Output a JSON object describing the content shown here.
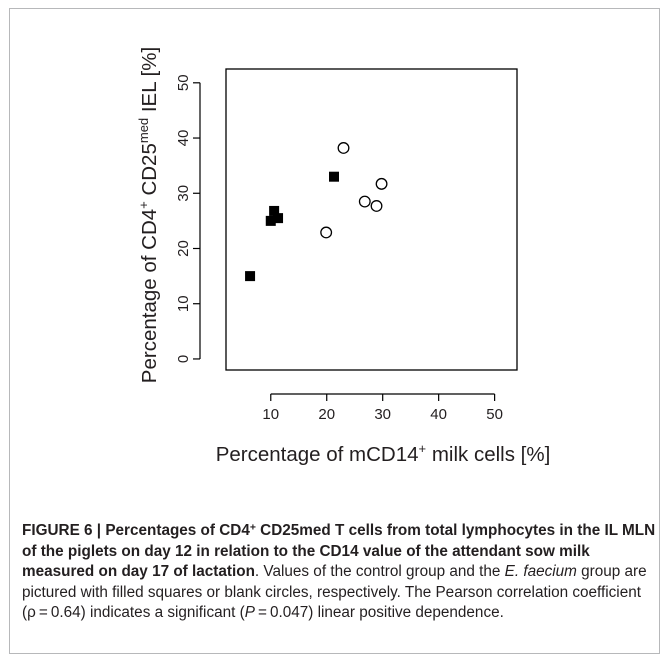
{
  "chart_data": {
    "type": "scatter",
    "xlabel": {
      "pre": "Percentage of mCD14",
      "sup": "+",
      "post": " milk cells [%]"
    },
    "ylabel": {
      "pre": "Percentage of CD4",
      "sup1": "+",
      "mid": " CD25",
      "sup2": "med",
      "post": " IEL [%]"
    },
    "xlim": [
      2,
      54
    ],
    "ylim": [
      -2,
      52.5
    ],
    "x_ticks": [
      10,
      20,
      30,
      40,
      50
    ],
    "y_ticks": [
      0,
      10,
      20,
      30,
      40,
      50
    ],
    "grid": false,
    "series": [
      {
        "marker": "filled-square",
        "color": "#000000",
        "points": [
          {
            "x": 6.3,
            "y": 15.0
          },
          {
            "x": 10.0,
            "y": 25.0
          },
          {
            "x": 10.6,
            "y": 26.8
          },
          {
            "x": 11.3,
            "y": 25.5
          },
          {
            "x": 21.3,
            "y": 33.0
          }
        ]
      },
      {
        "marker": "open-circle",
        "color": "#000000",
        "points": [
          {
            "x": 19.9,
            "y": 22.9
          },
          {
            "x": 23.0,
            "y": 38.2
          },
          {
            "x": 26.8,
            "y": 28.5
          },
          {
            "x": 28.9,
            "y": 27.7
          },
          {
            "x": 29.8,
            "y": 31.7
          }
        ]
      }
    ]
  },
  "caption": {
    "head_a": "FIGURE 6 | Percentages of CD4",
    "head_sup": "+",
    "head_b": " CD25med T cells from total lymphocytes in the IL MLN of the piglets on day 12 in relation to the CD14 value of the attendant sow milk measured on day 17 of lactation",
    "head_end": ".",
    "body_a": " Values of the control group and the ",
    "body_italic": "E. faecium",
    "body_b": " group are pictured with filled squares or blank circles, respectively. The Pearson correlation coefficient (ρ = 0.64) indicates a significant (",
    "body_p": "P",
    "body_c": " = 0.047) linear positive dependence."
  }
}
